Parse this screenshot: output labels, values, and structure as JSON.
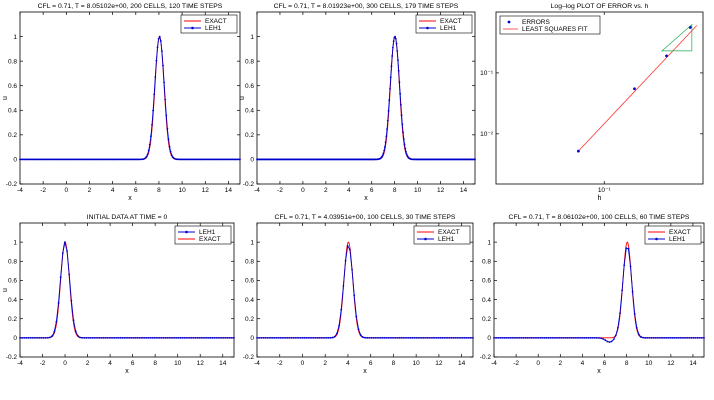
{
  "colors": {
    "exact": "#ff0000",
    "leh1": "#0000cc",
    "fit": "#ff3333",
    "errors": "#0000cc",
    "triangle": "#22aa55"
  },
  "chart_data": [
    {
      "type": "line",
      "title": "CFL = 0.71, T = 8.05102e+00,   200 CELLS,   120 TIME STEPS",
      "xlabel": "x",
      "ylabel": "u",
      "xlim": [
        -4,
        15
      ],
      "ylim": [
        -0.2,
        1.2
      ],
      "xticks": [
        -4,
        -2,
        0,
        2,
        4,
        6,
        8,
        10,
        12,
        14
      ],
      "yticks": [
        -0.2,
        0,
        0.2,
        0.4,
        0.6,
        0.8,
        1
      ],
      "grid": false,
      "legend": "top-right",
      "pulse_center": 8.05,
      "pulse_width": 0.55,
      "markers": 200,
      "series": [
        {
          "name": "EXACT",
          "style": "line"
        },
        {
          "name": "LEH1",
          "style": "line-dots"
        }
      ]
    },
    {
      "type": "line",
      "title": "CFL = 0.71, T = 8.01923e+00,   300 CELLS,   179 TIME STEPS",
      "xlabel": "x",
      "ylabel": "u",
      "xlim": [
        -4,
        15
      ],
      "ylim": [
        -0.2,
        1.2
      ],
      "xticks": [
        -4,
        -2,
        0,
        2,
        4,
        6,
        8,
        10,
        12,
        14
      ],
      "yticks": [
        -0.2,
        0,
        0.2,
        0.4,
        0.6,
        0.8,
        1
      ],
      "grid": false,
      "legend": "top-right",
      "pulse_center": 8.02,
      "pulse_width": 0.55,
      "markers": 300,
      "series": [
        {
          "name": "EXACT",
          "style": "line"
        },
        {
          "name": "LEH1",
          "style": "line-dots"
        }
      ]
    },
    {
      "type": "scatter",
      "title": "Log–log PLOT OF ERROR vs. h",
      "xlabel": "h",
      "ylabel": "",
      "scale": "log",
      "xlim": [
        0.03,
        0.3
      ],
      "ylim": [
        0.0015,
        1.0
      ],
      "xticks": [
        0.1
      ],
      "xticklabels": [
        "10⁻¹"
      ],
      "yticks": [
        0.01,
        0.1
      ],
      "yticklabels": [
        "10⁻²",
        "10⁻¹"
      ],
      "grid": false,
      "legend": "top-left",
      "series": [
        {
          "name": "ERRORS",
          "style": "points",
          "x": [
            0.075,
            0.14,
            0.2,
            0.26
          ],
          "y": [
            0.0052,
            0.055,
            0.19,
            0.56
          ]
        },
        {
          "name": "LEAST SQUARES FIT",
          "style": "line",
          "x": [
            0.075,
            0.28
          ],
          "y": [
            0.0052,
            0.6
          ]
        }
      ]
    },
    {
      "type": "line",
      "title": "INITIAL DATA AT TIME = 0",
      "xlabel": "x",
      "ylabel": "u",
      "xlim": [
        -4,
        15
      ],
      "ylim": [
        -0.2,
        1.2
      ],
      "xticks": [
        -4,
        -2,
        0,
        2,
        4,
        6,
        8,
        10,
        12,
        14
      ],
      "yticks": [
        -0.2,
        0,
        0.2,
        0.4,
        0.6,
        0.8,
        1
      ],
      "grid": false,
      "legend": "top-right",
      "pulse_center": 0,
      "pulse_width": 0.55,
      "markers": 100,
      "series": [
        {
          "name": "LEH1",
          "style": "line-dots"
        },
        {
          "name": "EXACT",
          "style": "line"
        }
      ]
    },
    {
      "type": "line",
      "title": "CFL = 0.71, T = 4.03951e+00,   100 CELLS,   30 TIME STEPS",
      "xlabel": "x",
      "ylabel": "",
      "xlim": [
        -4,
        15
      ],
      "ylim": [
        -0.2,
        1.2
      ],
      "xticks": [
        -4,
        -2,
        0,
        2,
        4,
        6,
        8,
        10,
        12,
        14
      ],
      "yticks": [
        -0.2,
        0,
        0.2,
        0.4,
        0.6,
        0.8,
        1
      ],
      "grid": false,
      "legend": "top-right",
      "pulse_center": 4.04,
      "pulse_width": 0.55,
      "peak": 0.97,
      "markers": 100,
      "series": [
        {
          "name": "EXACT",
          "style": "line"
        },
        {
          "name": "LEH1",
          "style": "line-dots"
        }
      ]
    },
    {
      "type": "line",
      "title": "CFL = 0.71, T = 8.06102e+00,   100 CELLS,   60 TIME STEPS",
      "xlabel": "x",
      "ylabel": "",
      "xlim": [
        -4,
        15
      ],
      "ylim": [
        -0.2,
        1.2
      ],
      "xticks": [
        -4,
        -2,
        0,
        2,
        4,
        6,
        8,
        10,
        12,
        14
      ],
      "yticks": [
        -0.2,
        0,
        0.2,
        0.4,
        0.6,
        0.8,
        1
      ],
      "grid": false,
      "legend": "top-right",
      "pulse_center": 8.06,
      "pulse_width": 0.55,
      "peak": 0.96,
      "undershoot": true,
      "markers": 100,
      "series": [
        {
          "name": "EXACT",
          "style": "line"
        },
        {
          "name": "LEH1",
          "style": "line-dots"
        }
      ]
    }
  ]
}
